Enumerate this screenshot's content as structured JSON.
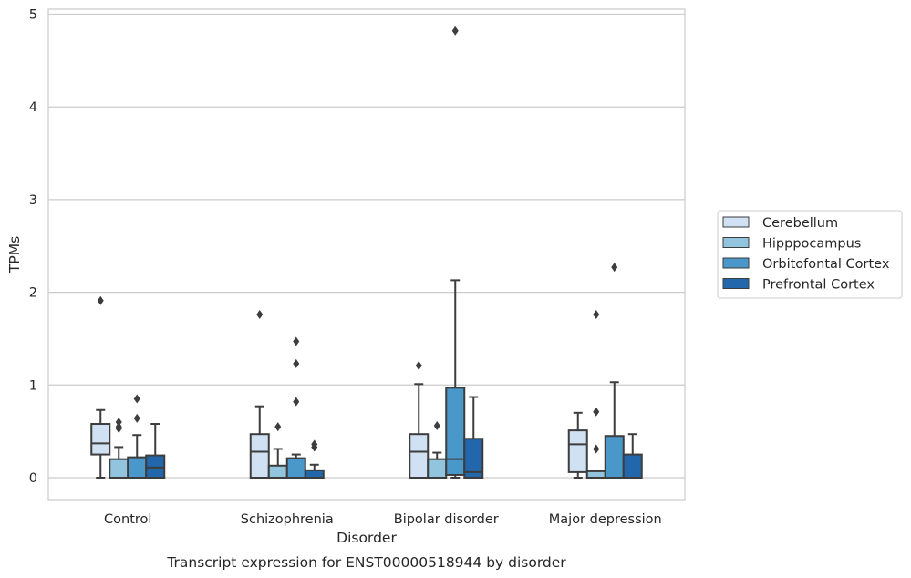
{
  "chart_data": {
    "type": "box",
    "title": "Transcript expression for ENST00000518944 by disorder",
    "xlabel": "Disorder",
    "ylabel": "TPMs",
    "ylim": [
      -0.23,
      5.08
    ],
    "yticks": [
      0,
      1,
      2,
      3,
      4,
      5
    ],
    "grid": "horizontal",
    "legend_position": "right",
    "categories": [
      "Control",
      "Schizophrenia",
      "Bipolar disorder",
      "Major depression"
    ],
    "series": [
      {
        "name": "Cerebellum",
        "color": "#cfe1f2",
        "boxes": [
          {
            "whislo": 0.0,
            "q1": 0.25,
            "med": 0.37,
            "q3": 0.58,
            "whishi": 0.73,
            "fliers": [
              1.91
            ]
          },
          {
            "whislo": 0.0,
            "q1": 0.0,
            "med": 0.28,
            "q3": 0.47,
            "whishi": 0.77,
            "fliers": [
              1.76
            ]
          },
          {
            "whislo": 0.0,
            "q1": 0.0,
            "med": 0.28,
            "q3": 0.47,
            "whishi": 1.01,
            "fliers": [
              1.21
            ]
          },
          {
            "whislo": 0.0,
            "q1": 0.06,
            "med": 0.36,
            "q3": 0.51,
            "whishi": 0.7,
            "fliers": []
          }
        ]
      },
      {
        "name": "Hipppocampus",
        "color": "#93c4de",
        "boxes": [
          {
            "whislo": 0.0,
            "q1": 0.0,
            "med": 0.0,
            "q3": 0.2,
            "whishi": 0.33,
            "fliers": [
              0.53,
              0.55,
              0.6
            ]
          },
          {
            "whislo": 0.0,
            "q1": 0.0,
            "med": 0.0,
            "q3": 0.13,
            "whishi": 0.31,
            "fliers": [
              0.55
            ]
          },
          {
            "whislo": 0.0,
            "q1": 0.0,
            "med": 0.0,
            "q3": 0.2,
            "whishi": 0.27,
            "fliers": [
              0.56
            ]
          },
          {
            "whislo": 0.0,
            "q1": 0.0,
            "med": 0.0,
            "q3": 0.07,
            "whishi": 0.07,
            "fliers": [
              0.31,
              0.71,
              1.76
            ]
          }
        ]
      },
      {
        "name": "Orbitofontal Cortex",
        "color": "#4a98c9",
        "boxes": [
          {
            "whislo": 0.0,
            "q1": 0.0,
            "med": 0.0,
            "q3": 0.22,
            "whishi": 0.46,
            "fliers": [
              0.64,
              0.85
            ]
          },
          {
            "whislo": 0.0,
            "q1": 0.0,
            "med": 0.0,
            "q3": 0.21,
            "whishi": 0.25,
            "fliers": [
              0.82,
              1.23,
              1.47
            ]
          },
          {
            "whislo": 0.0,
            "q1": 0.03,
            "med": 0.2,
            "q3": 0.97,
            "whishi": 2.13,
            "fliers": [
              4.82
            ]
          },
          {
            "whislo": 0.0,
            "q1": 0.0,
            "med": 0.0,
            "q3": 0.45,
            "whishi": 1.03,
            "fliers": [
              2.27
            ]
          }
        ]
      },
      {
        "name": "Prefrontal Cortex",
        "color": "#2266ac",
        "boxes": [
          {
            "whislo": 0.0,
            "q1": 0.0,
            "med": 0.11,
            "q3": 0.24,
            "whishi": 0.58,
            "fliers": []
          },
          {
            "whislo": 0.0,
            "q1": 0.0,
            "med": 0.0,
            "q3": 0.08,
            "whishi": 0.14,
            "fliers": [
              0.33,
              0.36
            ]
          },
          {
            "whislo": 0.0,
            "q1": 0.0,
            "med": 0.06,
            "q3": 0.42,
            "whishi": 0.87,
            "fliers": []
          },
          {
            "whislo": 0.0,
            "q1": 0.0,
            "med": 0.0,
            "q3": 0.25,
            "whishi": 0.47,
            "fliers": []
          }
        ]
      }
    ]
  }
}
